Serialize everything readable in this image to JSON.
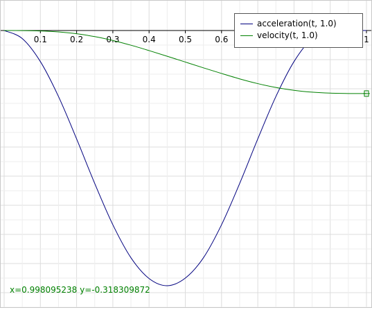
{
  "chart_data": {
    "type": "line",
    "title": "",
    "xlabel": "",
    "ylabel": "",
    "xlim": [
      0.0,
      1.0
    ],
    "ylim": [
      -3.4,
      0.05
    ],
    "x_ticks": [
      "0.1",
      "0.2",
      "0.3",
      "0.4",
      "0.5",
      "0.6",
      "0.7",
      "0.8",
      "0.9",
      "1"
    ],
    "grid": true,
    "legend_position": "top-right",
    "series": [
      {
        "name": "acceleration(t, 1.0)",
        "color": "#00007f",
        "x": [
          0.0,
          0.05,
          0.1,
          0.15,
          0.2,
          0.25,
          0.3,
          0.35,
          0.4,
          0.45,
          0.5,
          0.55,
          0.6,
          0.65,
          0.7,
          0.75,
          0.8,
          0.85,
          0.9,
          0.95,
          1.0
        ],
        "values": [
          0.0,
          -0.0813,
          -0.3137,
          -0.6667,
          -1.0947,
          -1.5447,
          -1.9614,
          -2.2947,
          -2.5043,
          -2.5767,
          -2.5,
          -2.2947,
          -1.9614,
          -1.5447,
          -1.0947,
          -0.6667,
          -0.3137,
          -0.0813,
          0.0,
          0.0,
          0.0
        ]
      },
      {
        "name": "velocity(t, 1.0)",
        "color": "#008000",
        "x": [
          0.0,
          0.05,
          0.1,
          0.15,
          0.2,
          0.25,
          0.3,
          0.35,
          0.4,
          0.45,
          0.5,
          0.55,
          0.6,
          0.65,
          0.7,
          0.75,
          0.8,
          0.85,
          0.9,
          0.95,
          1.0
        ],
        "values": [
          0.0,
          -0.0005,
          -0.0042,
          -0.0141,
          -0.0327,
          -0.0614,
          -0.1004,
          -0.1484,
          -0.2027,
          -0.2597,
          -0.3183,
          -0.3769,
          -0.4339,
          -0.4882,
          -0.5362,
          -0.5752,
          -0.6039,
          -0.6225,
          -0.6324,
          -0.6361,
          -0.6366
        ]
      }
    ],
    "end_marker": {
      "x": 1.0,
      "y": -0.6366
    }
  },
  "readout": {
    "text": "x=0.998095238 y=-0.318309872",
    "color": "#008000"
  }
}
